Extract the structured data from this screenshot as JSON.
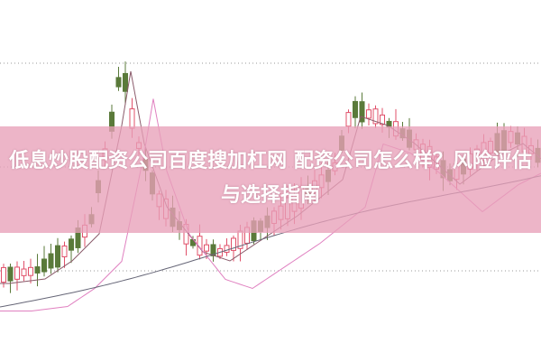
{
  "article": {
    "title": "低息炒股配资公司百度搜加杠网 配资公司怎么样？风险评估与选择指南"
  },
  "colors": {
    "up": "#e0506a",
    "down": "#5a7a3a",
    "banner": "#e8a0b9",
    "title_text": "#ffffff"
  }
}
